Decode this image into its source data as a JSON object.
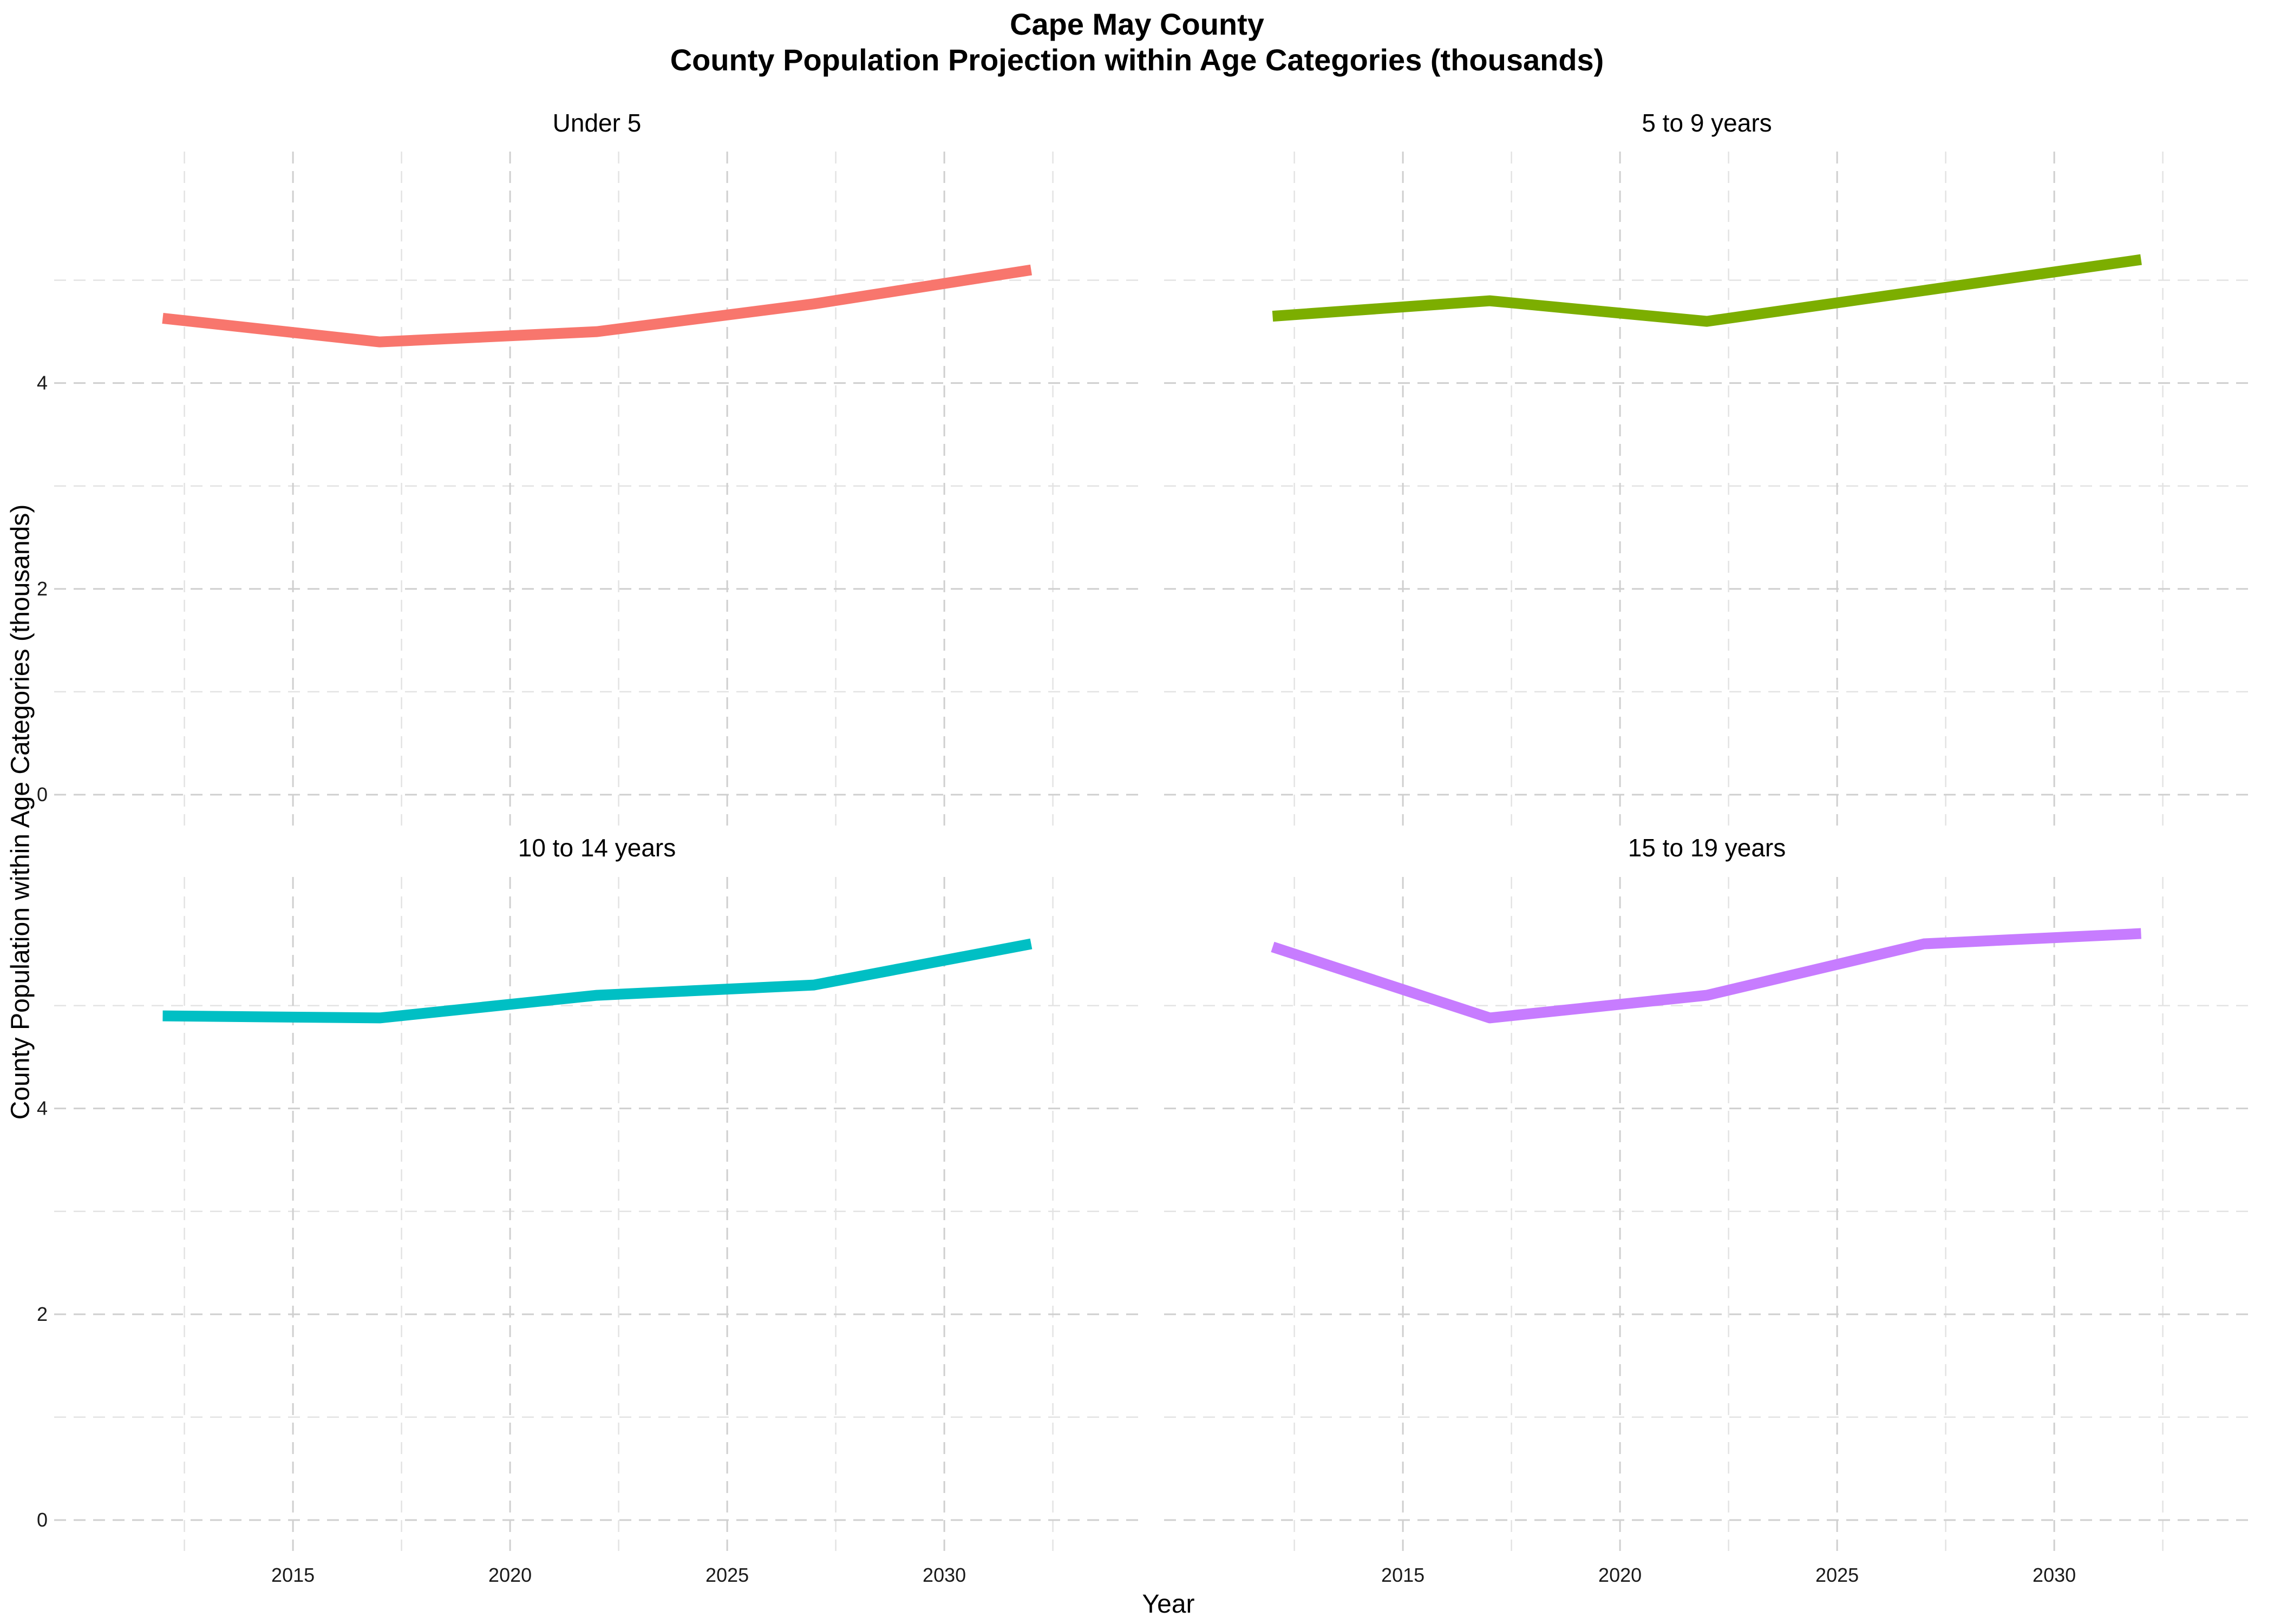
{
  "title": "Cape May County",
  "subtitle": "County Population Projection within Age Categories (thousands)",
  "chart_data": {
    "type": "line",
    "title": "Cape May County",
    "subtitle": "County Population Projection within Age Categories (thousands)",
    "xlabel": "Year",
    "ylabel": "County Population within Age Categories (thousands)",
    "xlim": [
      2009.5,
      2034.5
    ],
    "ylim": [
      -0.3,
      6.25
    ],
    "x_ticks": [
      2015,
      2020,
      2025,
      2030
    ],
    "y_ticks": [
      0,
      2,
      4
    ],
    "grid": true,
    "facets": [
      {
        "name": "Under 5",
        "color": "#F8766D",
        "x": [
          2012,
          2017,
          2022,
          2027,
          2032
        ],
        "values": [
          4.63,
          4.4,
          4.5,
          4.77,
          5.1
        ]
      },
      {
        "name": "5 to 9 years",
        "color": "#7CAE00",
        "x": [
          2012,
          2017,
          2022,
          2027,
          2032
        ],
        "values": [
          4.65,
          4.8,
          4.6,
          4.9,
          5.2
        ]
      },
      {
        "name": "10 to 14 years",
        "color": "#00BFC4",
        "x": [
          2012,
          2017,
          2022,
          2027,
          2032
        ],
        "values": [
          4.9,
          4.88,
          5.1,
          5.2,
          5.6
        ]
      },
      {
        "name": "15 to 19 years",
        "color": "#C77CFF",
        "x": [
          2012,
          2017,
          2022,
          2027,
          2032
        ],
        "values": [
          5.57,
          4.88,
          5.1,
          5.6,
          5.7
        ]
      }
    ]
  }
}
